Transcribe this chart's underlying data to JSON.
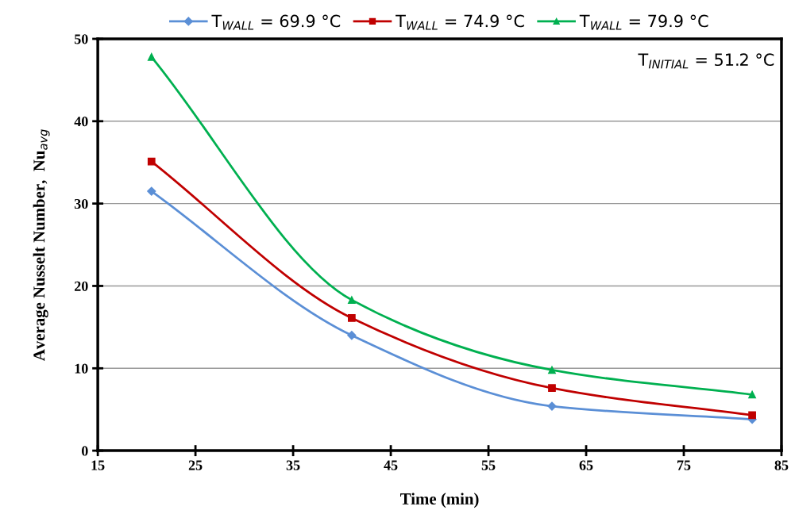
{
  "chart_data": {
    "type": "line",
    "xlabel": "Time (min)",
    "ylabel": "Average Nusselt Number,  Nu$_{avg}$",
    "x": [
      20.5,
      41,
      61.5,
      82
    ],
    "series": [
      {
        "name": "T$_{WALL}$ = 69.9 °C",
        "color": "#5b8fd6",
        "marker": "diamond",
        "values": [
          31.5,
          14.0,
          5.4,
          3.8
        ]
      },
      {
        "name": "T$_{WALL}$ = 74.9 °C",
        "color": "#c00000",
        "marker": "square",
        "values": [
          35.1,
          16.1,
          7.6,
          4.3
        ]
      },
      {
        "name": "T$_{WALL}$ = 79.9 °C",
        "color": "#00b050",
        "marker": "triangle",
        "values": [
          47.8,
          18.3,
          9.8,
          6.8
        ]
      }
    ],
    "xlim": [
      15,
      85
    ],
    "xticks": [
      15,
      25,
      35,
      45,
      55,
      65,
      75,
      85
    ],
    "ylim": [
      0,
      50
    ],
    "yticks": [
      0,
      10,
      20,
      30,
      40,
      50
    ],
    "grid": "y",
    "legend": "top",
    "line_style": "solid",
    "annotations": [
      "T$_{INITIAL}$ = 51.2 °C"
    ]
  }
}
